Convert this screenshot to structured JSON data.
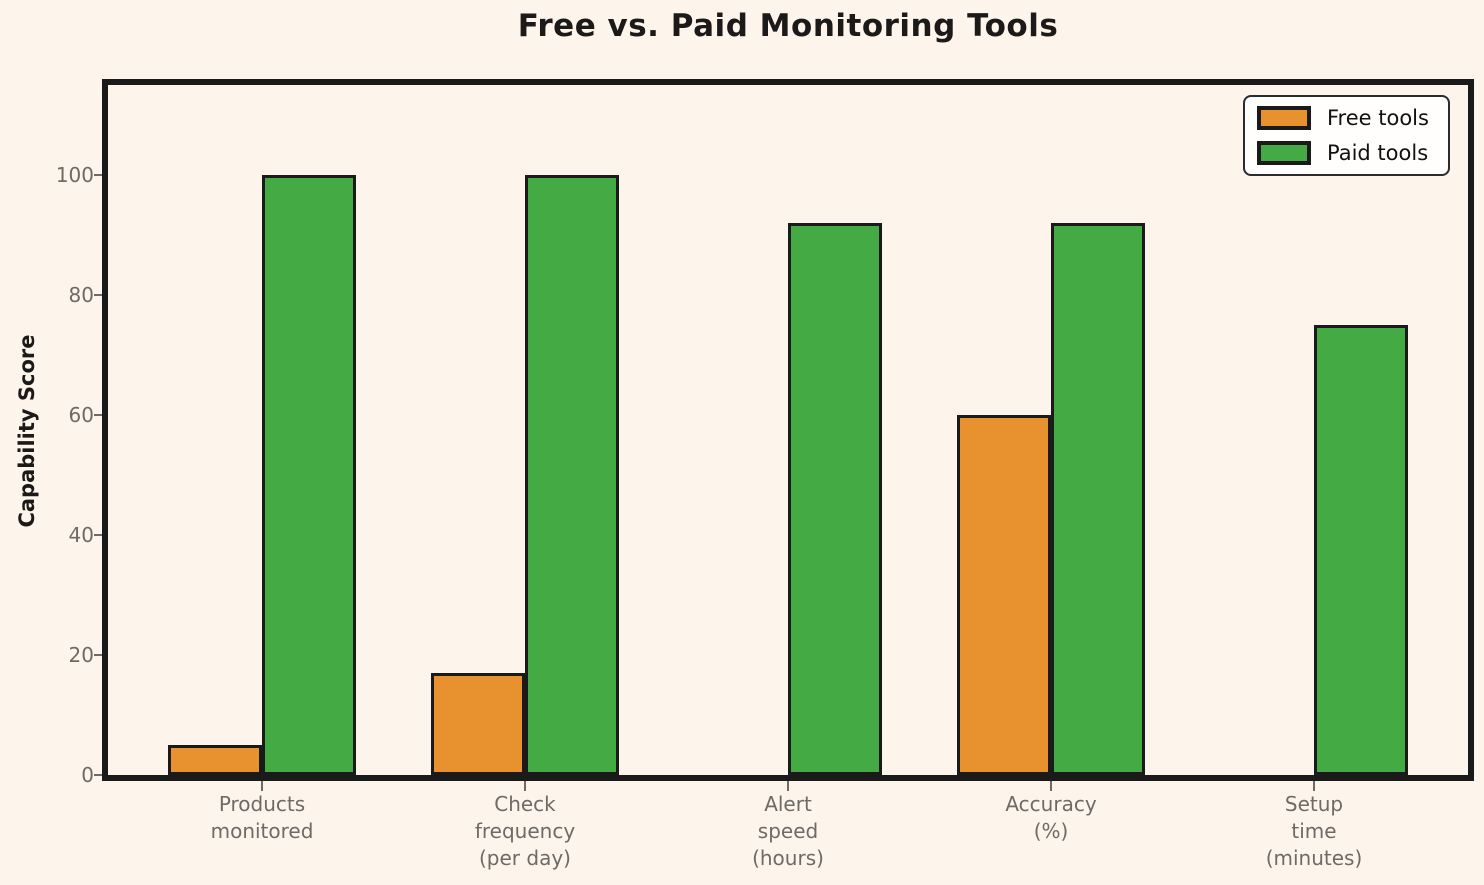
{
  "title": "Free vs. Paid Monitoring Tools",
  "chart_data": {
    "type": "bar",
    "title": "Free vs. Paid Monitoring Tools",
    "categories": [
      "Products\nmonitored",
      "Check\nfrequency\n(per day)",
      "Alert\nspeed\n(hours)",
      "Accuracy\n(%)",
      "Setup\ntime\n(minutes)"
    ],
    "series": [
      {
        "name": "Free tools",
        "color": "#e8912f",
        "values": [
          5,
          17,
          0,
          60,
          0
        ]
      },
      {
        "name": "Paid tools",
        "color": "#44ab44",
        "values": [
          100,
          100,
          92,
          92,
          75
        ]
      }
    ],
    "xlabel": "",
    "ylabel": "Capability Score",
    "yticks": [
      0,
      20,
      40,
      60,
      80,
      100
    ],
    "ylim": [
      0,
      115
    ],
    "grid": false,
    "legend_position": "top-right",
    "bar_edge_color": "#1a1a1a",
    "background_color": "#fdf4ec",
    "tick_label_color": "#6e6a66"
  }
}
